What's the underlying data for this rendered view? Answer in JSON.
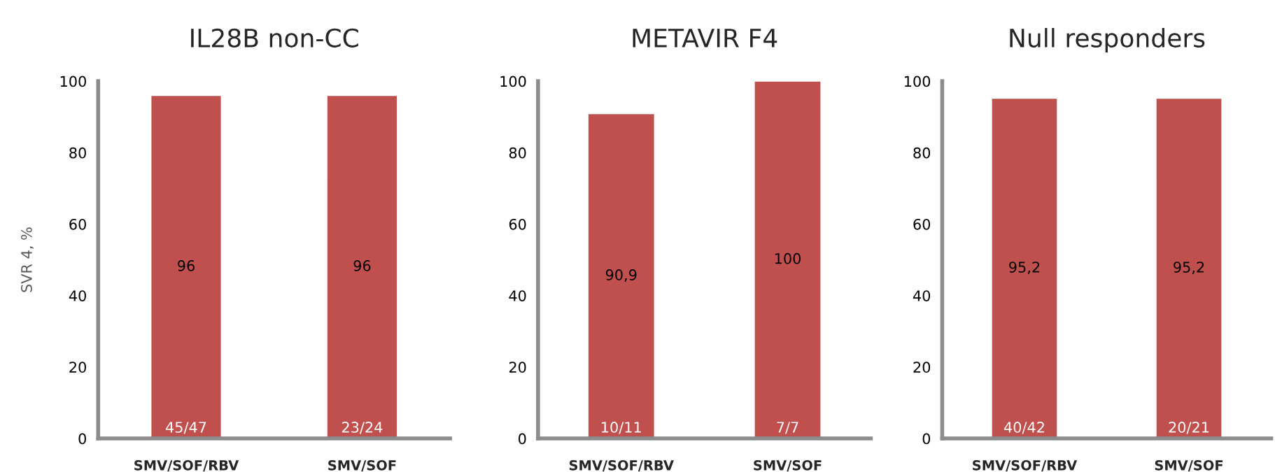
{
  "chart_data": [
    {
      "type": "bar",
      "title": "IL28B non-CC",
      "ylabel": "SVR 4, %",
      "categories": [
        "SMV/SOF/RBV",
        "SMV/SOF"
      ],
      "values": [
        96,
        96
      ],
      "value_labels": [
        "96",
        "96"
      ],
      "color": "#c0504d",
      "ylim": [
        0,
        100
      ],
      "yticks": [
        0,
        20,
        40,
        60,
        80,
        100
      ],
      "grid": false,
      "legend": false,
      "annotations": [
        {
          "text": "45/47",
          "x": "SMV/SOF/RBV",
          "y": 0
        },
        {
          "text": "23/24",
          "x": "SMV/SOF",
          "y": 0
        }
      ]
    },
    {
      "type": "bar",
      "title": "METAVIR F4",
      "categories": [
        "SMV/SOF/RBV",
        "SMV/SOF"
      ],
      "values": [
        90.9,
        100
      ],
      "value_labels": [
        "90,9",
        "100"
      ],
      "color": "#c0504d",
      "ylim": [
        0,
        100
      ],
      "yticks": [
        0,
        20,
        40,
        60,
        80,
        100
      ],
      "grid": false,
      "legend": false,
      "annotations": [
        {
          "text": "10/11",
          "x": "SMV/SOF/RBV",
          "y": 0
        },
        {
          "text": "7/7",
          "x": "SMV/SOF",
          "y": 0
        }
      ]
    },
    {
      "type": "bar",
      "title": "Null responders",
      "categories": [
        "SMV/SOF/RBV",
        "SMV/SOF"
      ],
      "values": [
        95.2,
        95.2
      ],
      "value_labels": [
        "95,2",
        "95,2"
      ],
      "color": "#c0504d",
      "ylim": [
        0,
        100
      ],
      "yticks": [
        0,
        20,
        40,
        60,
        80,
        100
      ],
      "grid": false,
      "legend": false,
      "annotations": [
        {
          "text": "40/42",
          "x": "SMV/SOF/RBV",
          "y": 0
        },
        {
          "text": "20/21",
          "x": "SMV/SOF",
          "y": 0
        }
      ]
    }
  ]
}
